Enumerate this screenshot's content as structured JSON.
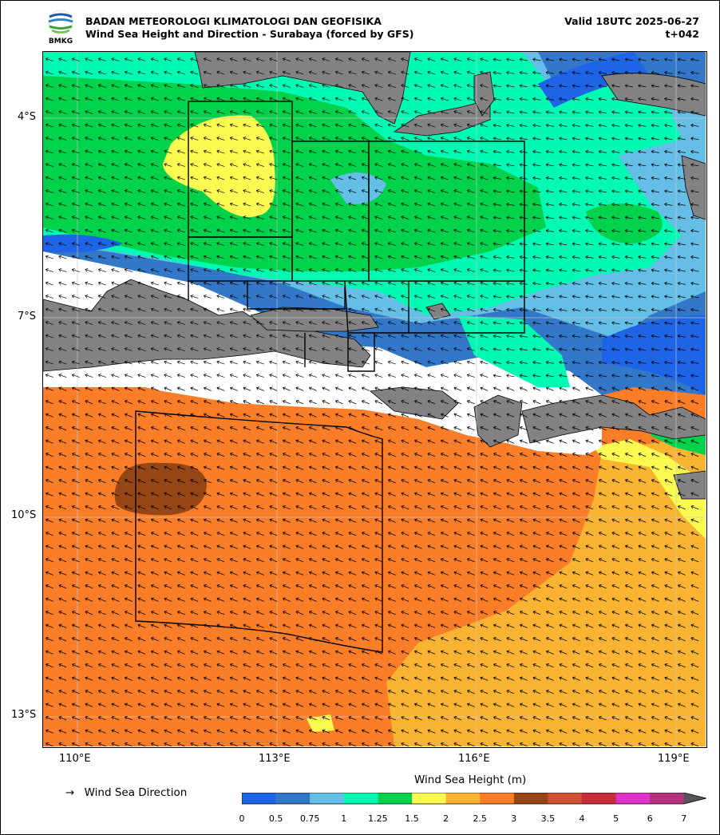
{
  "header": {
    "agency": "BADAN METEOROLOGI KLIMATOLOGI DAN GEOFISIKA",
    "product": "Wind Sea Height and Direction - Surabaya (forced by GFS)",
    "valid": "Valid 18UTC 2025-06-27",
    "lead": "t+042",
    "logo_text": "BMKG"
  },
  "axes": {
    "lat_labels": [
      "4°S",
      "7°S",
      "10°S",
      "13°S"
    ],
    "lon_labels": [
      "110°E",
      "113°E",
      "116°E",
      "119°E"
    ]
  },
  "legend": {
    "direction_symbol": "→",
    "direction_label": "Wind Sea Direction",
    "colorbar_title": "Wind Sea Height (m)",
    "ticks": [
      "0",
      "0.5",
      "0.75",
      "1",
      "1.25",
      "1.5",
      "2",
      "2.5",
      "3",
      "3.5",
      "4",
      "5",
      "6",
      "7"
    ],
    "colors": [
      "#1e64e6",
      "#3378c8",
      "#64bee6",
      "#00fab4",
      "#00d24b",
      "#fafa50",
      "#fab432",
      "#fa7d28",
      "#964614",
      "#d25032",
      "#c82d3c",
      "#e132c8",
      "#b4327d"
    ],
    "extend_color": "#555555"
  },
  "map_colors": {
    "land": "#828282",
    "nodata": "#ffffff",
    "coast": "#000000",
    "grid": "#c8c8c8"
  }
}
